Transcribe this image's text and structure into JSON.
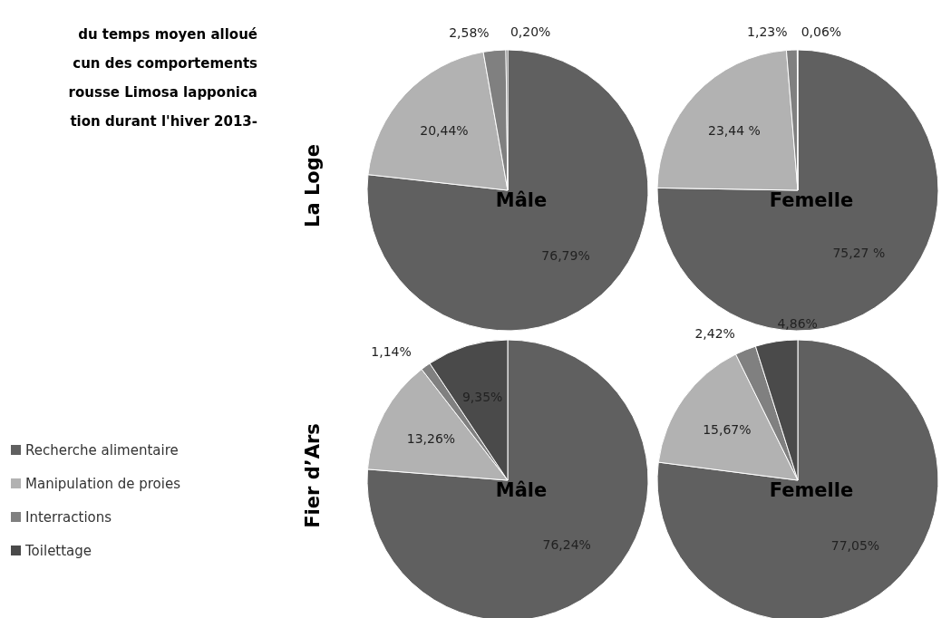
{
  "chart_data": [
    {
      "type": "pie",
      "title": "Mâle",
      "ylabel": "La Loge",
      "legend": "left",
      "annotations": [
        "du temps moyen alloué",
        "cun des comportements",
        "rousse Limosa lapponica",
        "tion durant l'hiver 2013-"
      ],
      "categories": [
        "Recherche alimentaire",
        "Manipulation de proies",
        "Interractions",
        "Toilettage"
      ],
      "values": [
        76.79,
        20.44,
        2.58,
        0.2
      ],
      "colors": [
        "#606060",
        "#b2b2b2",
        "#808080",
        "#4a4a4a"
      ],
      "value_labels": [
        "76,79%",
        "20,44%",
        "2,58%",
        "0,20%"
      ]
    },
    {
      "type": "pie",
      "title": "Femelle",
      "categories": [
        null,
        null,
        null,
        null
      ],
      "values": [
        75.27,
        23.44,
        1.23,
        0.06
      ],
      "colors": [
        "#606060",
        "#b2b2b2",
        "#808080",
        "#4a4a4a"
      ],
      "value_labels": [
        "75,27 %",
        "23,44 %",
        "1,23%",
        "0,06%"
      ]
    },
    {
      "type": "pie",
      "title": "Mâle",
      "ylabel": "Fier d’Ars",
      "categories": [
        null,
        null,
        null,
        null
      ],
      "values": [
        76.24,
        13.26,
        1.14,
        9.35
      ],
      "colors": [
        "#606060",
        "#b2b2b2",
        "#808080",
        "#4a4a4a"
      ],
      "value_labels": [
        "76,24%",
        "13,26%",
        "1,14%",
        "9,35%"
      ]
    },
    {
      "type": "pie",
      "title": "Femelle",
      "categories": [
        null,
        null,
        null,
        null
      ],
      "values": [
        77.05,
        15.67,
        2.42,
        4.86
      ],
      "colors": [
        "#606060",
        "#b2b2b2",
        "#808080",
        "#4a4a4a"
      ],
      "value_labels": [
        "77,05%",
        "15,67%",
        "2,42%",
        "4,86%"
      ]
    }
  ]
}
